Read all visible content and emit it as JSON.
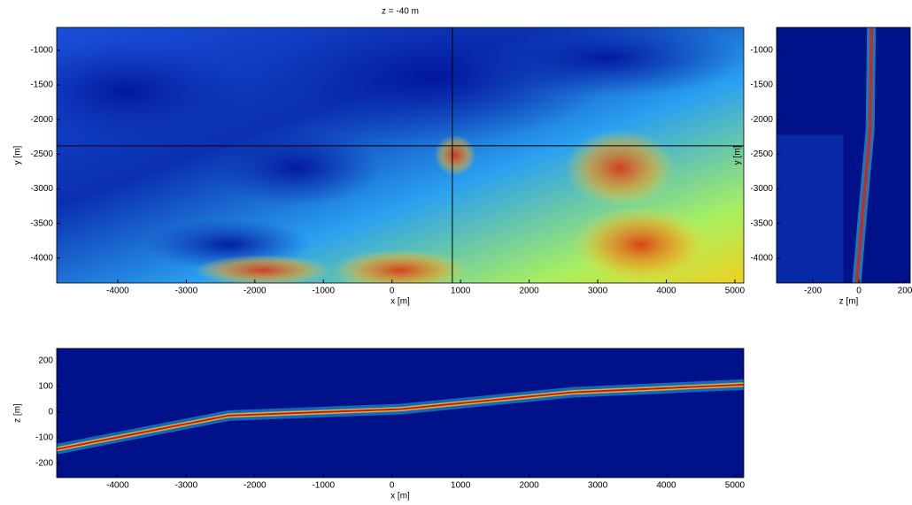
{
  "chart_data": [
    {
      "type": "image",
      "title": "z = -40 m",
      "xlabel": "x [m]",
      "ylabel": "y [m]",
      "xlim": [
        -4890,
        5130
      ],
      "ylim": [
        -4360,
        -670
      ],
      "xticks": [
        -4000,
        -3000,
        -2000,
        -1000,
        0,
        1000,
        2000,
        3000,
        4000,
        5000
      ],
      "yticks": [
        -4000,
        -3500,
        -3000,
        -2500,
        -2000,
        -1500,
        -1000
      ],
      "crosshair": {
        "x": 880,
        "y": -2380
      }
    },
    {
      "type": "image",
      "xlabel": "z [m]",
      "ylabel": "y [m]",
      "xlim": [
        -358,
        223
      ],
      "ylim": [
        -4360,
        -670
      ],
      "xticks": [
        -200,
        0,
        200
      ],
      "yticks": [
        -4000,
        -3500,
        -3000,
        -2500,
        -2000,
        -1500,
        -1000
      ]
    },
    {
      "type": "image",
      "xlabel": "x [m]",
      "ylabel": "z [m]",
      "xlim": [
        -4890,
        5130
      ],
      "ylim": [
        -255,
        248
      ],
      "xticks": [
        -4000,
        -3000,
        -2000,
        -1000,
        0,
        1000,
        2000,
        3000,
        4000,
        5000
      ],
      "yticks": [
        -200,
        -100,
        0,
        100,
        200
      ]
    }
  ]
}
